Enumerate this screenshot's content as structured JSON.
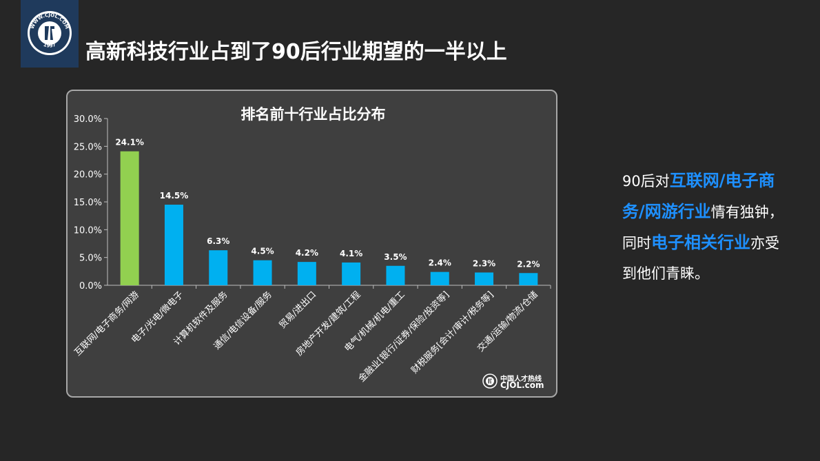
{
  "page": {
    "title": "高新科技行业占到了90后行业期望的一半以上"
  },
  "logo": {
    "text_top": "WWW.CJOL.COM",
    "text_bottom": "1997"
  },
  "chart_data": {
    "type": "bar",
    "title": "排名前十行业占比分布",
    "categories": [
      "互联网/电子商务/网游",
      "电子/光电/微电子",
      "计算机软件及服务",
      "通信/电信设备/服务",
      "贸易/进出口",
      "房地产开发/建筑/工程",
      "电气/机械/机电/重工",
      "金融业[银行/证券/保险/投资等]",
      "财税服务[会计/审计/税务等]",
      "交通/运输/物流/仓储"
    ],
    "values": [
      24.1,
      14.5,
      6.3,
      4.5,
      4.2,
      4.1,
      3.5,
      2.4,
      2.3,
      2.2
    ],
    "data_labels": [
      "24.1%",
      "14.5%",
      "6.3%",
      "4.5%",
      "4.2%",
      "4.1%",
      "3.5%",
      "2.4%",
      "2.3%",
      "2.2%"
    ],
    "yticks": [
      "0.0%",
      "5.0%",
      "10.0%",
      "15.0%",
      "20.0%",
      "25.0%",
      "30.0%"
    ],
    "ylim": [
      0,
      30
    ],
    "bar_colors": [
      "#92d050",
      "#00b0f0",
      "#00b0f0",
      "#00b0f0",
      "#00b0f0",
      "#00b0f0",
      "#00b0f0",
      "#00b0f0",
      "#00b0f0",
      "#00b0f0"
    ],
    "grid": false,
    "legend": "none"
  },
  "watermark": {
    "cn": "中国人才热线",
    "en": "CJOL.com"
  },
  "side": {
    "p1": "90后对",
    "h1": "互联网/电子商务/网游行业",
    "p2": "情有独钟，同时",
    "h2": "电子相关行业",
    "p3": "亦受到他们青睐。"
  },
  "colors": {
    "background": "#262626",
    "panel": "#3f3f3f",
    "highlight": "#1e90ff",
    "logo_bg": "#1f3a5c"
  }
}
